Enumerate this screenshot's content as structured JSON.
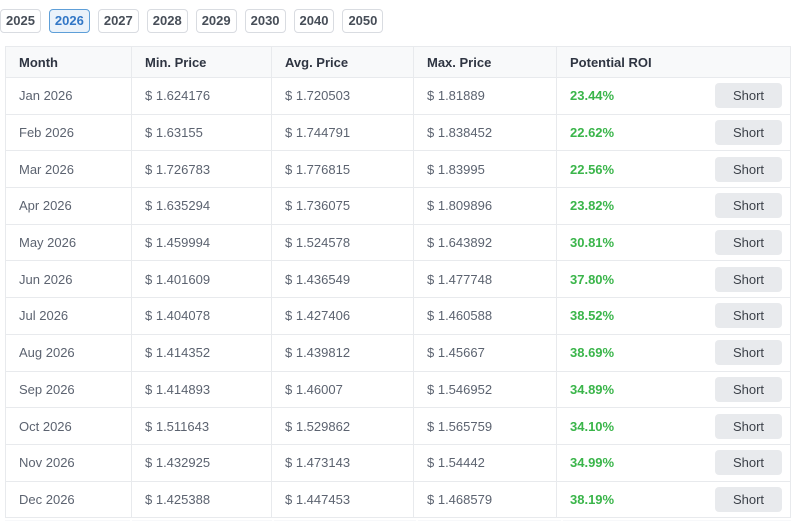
{
  "tabs": {
    "years": [
      "2025",
      "2026",
      "2027",
      "2028",
      "2029",
      "2030",
      "2040",
      "2050"
    ],
    "active": "2026"
  },
  "table": {
    "headers": [
      "Month",
      "Min. Price",
      "Avg. Price",
      "Max. Price",
      "Potential ROI"
    ],
    "short_label": "Short",
    "rows": [
      {
        "month": "Jan 2026",
        "min": "$ 1.624176",
        "avg": "$ 1.720503",
        "max": "$ 1.81889",
        "roi": "23.44%"
      },
      {
        "month": "Feb 2026",
        "min": "$ 1.63155",
        "avg": "$ 1.744791",
        "max": "$ 1.838452",
        "roi": "22.62%"
      },
      {
        "month": "Mar 2026",
        "min": "$ 1.726783",
        "avg": "$ 1.776815",
        "max": "$ 1.83995",
        "roi": "22.56%"
      },
      {
        "month": "Apr 2026",
        "min": "$ 1.635294",
        "avg": "$ 1.736075",
        "max": "$ 1.809896",
        "roi": "23.82%"
      },
      {
        "month": "May 2026",
        "min": "$ 1.459994",
        "avg": "$ 1.524578",
        "max": "$ 1.643892",
        "roi": "30.81%"
      },
      {
        "month": "Jun 2026",
        "min": "$ 1.401609",
        "avg": "$ 1.436549",
        "max": "$ 1.477748",
        "roi": "37.80%"
      },
      {
        "month": "Jul 2026",
        "min": "$ 1.404078",
        "avg": "$ 1.427406",
        "max": "$ 1.460588",
        "roi": "38.52%"
      },
      {
        "month": "Aug 2026",
        "min": "$ 1.414352",
        "avg": "$ 1.439812",
        "max": "$ 1.45667",
        "roi": "38.69%"
      },
      {
        "month": "Sep 2026",
        "min": "$ 1.414893",
        "avg": "$ 1.46007",
        "max": "$ 1.546952",
        "roi": "34.89%"
      },
      {
        "month": "Oct 2026",
        "min": "$ 1.511643",
        "avg": "$ 1.529862",
        "max": "$ 1.565759",
        "roi": "34.10%"
      },
      {
        "month": "Nov 2026",
        "min": "$ 1.432925",
        "avg": "$ 1.473143",
        "max": "$ 1.54442",
        "roi": "34.99%"
      },
      {
        "month": "Dec 2026",
        "min": "$ 1.425388",
        "avg": "$ 1.447453",
        "max": "$ 1.468579",
        "roi": "38.19%"
      }
    ]
  },
  "colors": {
    "roi_green": "#3ab54a",
    "active_tab_text": "#3277c6",
    "active_tab_border": "#5e9fd8",
    "active_tab_bg": "#eaf2fa",
    "table_border": "#e8eaed",
    "header_bg": "#f8f9fa",
    "short_button_bg": "#e8eaed"
  }
}
